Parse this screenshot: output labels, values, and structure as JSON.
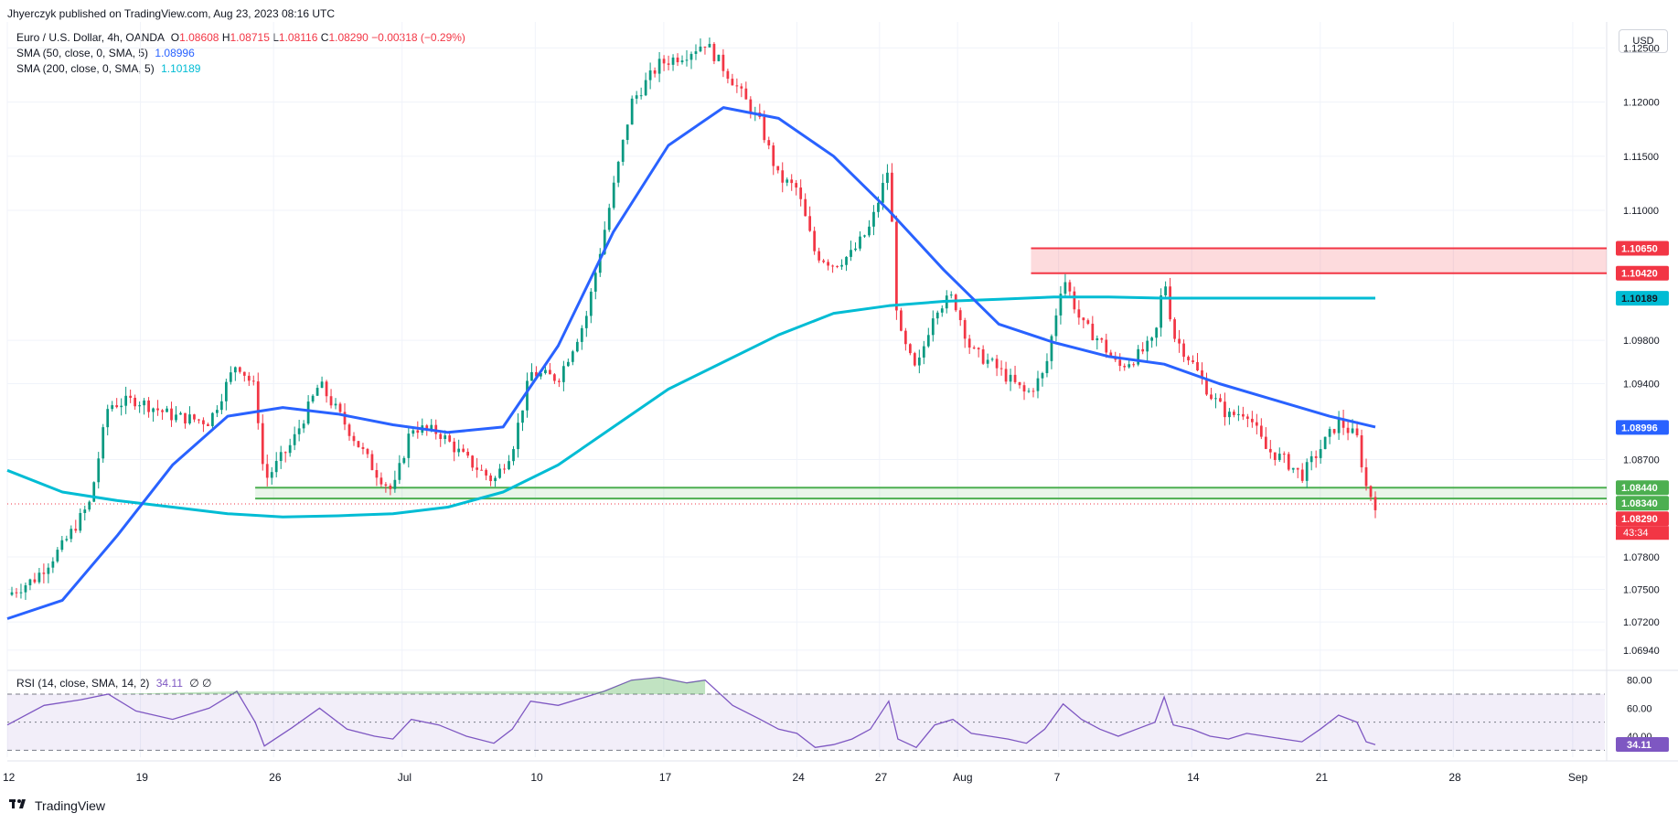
{
  "header": {
    "published_by": "Jhyerczyk published on TradingView.com, Aug 23, 2023 08:16 UTC"
  },
  "legend": {
    "symbol": "Euro / U.S. Dollar, 4h, OANDA",
    "ohlc": {
      "o_label": "O",
      "o": "1.08608",
      "h_label": "H",
      "h": "1.08715",
      "l_label": "L",
      "l": "1.08116",
      "c_label": "C",
      "c": "1.08290",
      "change": "−0.00318 (−0.29%)"
    },
    "sma50": {
      "label": "SMA (50, close, 0, SMA, 5)",
      "value": "1.08996"
    },
    "sma200": {
      "label": "SMA (200, close, 0, SMA, 5)",
      "value": "1.10189"
    },
    "rsi": {
      "label": "RSI (14, close, SMA, 14, 2)",
      "value": "34.11",
      "extra": "∅ ∅"
    }
  },
  "currency_button": "USD",
  "footer": {
    "brand": "TradingView",
    "logo": "tradingview-logo-icon"
  },
  "colors": {
    "up": "#089981",
    "down": "#f23645",
    "sma50": "#2962ff",
    "sma200": "#00bcd4",
    "support": "#4caf50",
    "resistance": "#f23645",
    "rsi": "#7e57c2",
    "grid": "#f0f3fa"
  },
  "chart_data": {
    "type": "candlestick",
    "timeframe": "4h",
    "ylim": [
      1.0677,
      1.1274
    ],
    "y_ticks": [
      "1.12500",
      "1.12000",
      "1.11500",
      "1.11000",
      "1.09800",
      "1.09400",
      "1.08700",
      "1.07800",
      "1.07500",
      "1.07200",
      "1.06940"
    ],
    "x_ticks": [
      "12",
      "19",
      "26",
      "Jul",
      "10",
      "17",
      "24",
      "27",
      "Aug",
      "7",
      "14",
      "21",
      "28",
      "Sep"
    ],
    "price_labels": [
      {
        "value": "1.10650",
        "bg": "#f23645",
        "fg": "#ffffff"
      },
      {
        "value": "1.10420",
        "bg": "#f23645",
        "fg": "#ffffff"
      },
      {
        "value": "1.10189",
        "bg": "#00bcd4",
        "fg": "#131722"
      },
      {
        "value": "1.08996",
        "bg": "#2962ff",
        "fg": "#ffffff"
      },
      {
        "value": "1.08440",
        "bg": "#4caf50",
        "fg": "#ffffff"
      },
      {
        "value": "1.08340",
        "bg": "#4caf50",
        "fg": "#ffffff"
      },
      {
        "value": "1.08290",
        "bg": "#f23645",
        "fg": "#ffffff"
      }
    ],
    "countdown": "43:34",
    "resistance_zone": [
      1.1042,
      1.1065
    ],
    "support_zone": [
      1.0834,
      1.0844
    ],
    "last_close": 1.0829,
    "sma50": [
      [
        0,
        1.0723
      ],
      [
        0.06,
        1.074
      ],
      [
        0.12,
        1.08
      ],
      [
        0.18,
        1.0865
      ],
      [
        0.24,
        1.091
      ],
      [
        0.3,
        1.0918
      ],
      [
        0.36,
        1.0912
      ],
      [
        0.42,
        1.0902
      ],
      [
        0.48,
        1.0895
      ],
      [
        0.54,
        1.09
      ],
      [
        0.6,
        1.0975
      ],
      [
        0.66,
        1.108
      ],
      [
        0.72,
        1.116
      ],
      [
        0.78,
        1.1195
      ],
      [
        0.84,
        1.1185
      ],
      [
        0.9,
        1.115
      ],
      [
        0.96,
        1.11
      ],
      [
        1.02,
        1.1045
      ],
      [
        1.08,
        1.0995
      ],
      [
        1.14,
        1.0978
      ],
      [
        1.2,
        1.0965
      ],
      [
        1.26,
        1.0958
      ],
      [
        1.32,
        1.094
      ],
      [
        1.38,
        1.0925
      ],
      [
        1.44,
        1.091
      ],
      [
        1.49,
        1.09
      ]
    ],
    "sma200": [
      [
        0,
        1.086
      ],
      [
        0.06,
        1.084
      ],
      [
        0.12,
        1.0832
      ],
      [
        0.18,
        1.0826
      ],
      [
        0.24,
        1.082
      ],
      [
        0.3,
        1.0817
      ],
      [
        0.36,
        1.0818
      ],
      [
        0.42,
        1.082
      ],
      [
        0.48,
        1.0826
      ],
      [
        0.54,
        1.084
      ],
      [
        0.6,
        1.0865
      ],
      [
        0.66,
        1.09
      ],
      [
        0.72,
        1.0935
      ],
      [
        0.78,
        1.096
      ],
      [
        0.84,
        1.0985
      ],
      [
        0.9,
        1.1005
      ],
      [
        0.96,
        1.1012
      ],
      [
        1.02,
        1.1016
      ],
      [
        1.08,
        1.1018
      ],
      [
        1.14,
        1.102
      ],
      [
        1.2,
        1.102
      ],
      [
        1.26,
        1.1019
      ],
      [
        1.32,
        1.1019
      ],
      [
        1.38,
        1.1019
      ],
      [
        1.44,
        1.1019
      ],
      [
        1.49,
        1.1019
      ]
    ],
    "close_path": [
      [
        0,
        1.0745
      ],
      [
        0.03,
        1.076
      ],
      [
        0.06,
        1.079
      ],
      [
        0.09,
        1.083
      ],
      [
        0.11,
        1.092
      ],
      [
        0.14,
        1.0925
      ],
      [
        0.18,
        1.091
      ],
      [
        0.22,
        1.0905
      ],
      [
        0.25,
        1.096
      ],
      [
        0.27,
        1.0935
      ],
      [
        0.28,
        1.085
      ],
      [
        0.31,
        1.0885
      ],
      [
        0.34,
        1.094
      ],
      [
        0.37,
        1.09
      ],
      [
        0.4,
        1.086
      ],
      [
        0.42,
        1.084
      ],
      [
        0.44,
        1.09
      ],
      [
        0.47,
        1.0895
      ],
      [
        0.5,
        1.087
      ],
      [
        0.53,
        1.085
      ],
      [
        0.55,
        1.088
      ],
      [
        0.57,
        1.095
      ],
      [
        0.6,
        1.0945
      ],
      [
        0.63,
        1.1
      ],
      [
        0.65,
        1.108
      ],
      [
        0.68,
        1.12
      ],
      [
        0.71,
        1.1235
      ],
      [
        0.74,
        1.1245
      ],
      [
        0.76,
        1.1255
      ],
      [
        0.79,
        1.122
      ],
      [
        0.82,
        1.118
      ],
      [
        0.84,
        1.113
      ],
      [
        0.86,
        1.112
      ],
      [
        0.88,
        1.106
      ],
      [
        0.9,
        1.105
      ],
      [
        0.92,
        1.106
      ],
      [
        0.94,
        1.1085
      ],
      [
        0.96,
        1.114
      ],
      [
        0.97,
        1.099
      ],
      [
        0.99,
        1.095
      ],
      [
        1.01,
        1.101
      ],
      [
        1.03,
        1.102
      ],
      [
        1.05,
        1.097
      ],
      [
        1.07,
        1.096
      ],
      [
        1.09,
        1.0945
      ],
      [
        1.11,
        1.093
      ],
      [
        1.13,
        1.095
      ],
      [
        1.15,
        1.104
      ],
      [
        1.17,
        1.0995
      ],
      [
        1.19,
        1.098
      ],
      [
        1.21,
        1.0955
      ],
      [
        1.23,
        1.0965
      ],
      [
        1.25,
        1.098
      ],
      [
        1.26,
        1.104
      ],
      [
        1.27,
        1.0985
      ],
      [
        1.29,
        1.096
      ],
      [
        1.31,
        1.093
      ],
      [
        1.33,
        1.091
      ],
      [
        1.35,
        1.0915
      ],
      [
        1.37,
        1.088
      ],
      [
        1.39,
        1.087
      ],
      [
        1.41,
        1.0855
      ],
      [
        1.43,
        1.088
      ],
      [
        1.45,
        1.0905
      ],
      [
        1.47,
        1.089
      ],
      [
        1.48,
        1.0845
      ],
      [
        1.49,
        1.0829
      ]
    ],
    "rsi": {
      "ylim": [
        25,
        85
      ],
      "levels": [
        "80.00",
        "60.00",
        "40.00"
      ],
      "bands": [
        70,
        50,
        30
      ],
      "last": "34.11",
      "path": [
        [
          0,
          48
        ],
        [
          0.04,
          62
        ],
        [
          0.08,
          66
        ],
        [
          0.11,
          70
        ],
        [
          0.14,
          58
        ],
        [
          0.18,
          52
        ],
        [
          0.22,
          60
        ],
        [
          0.25,
          72
        ],
        [
          0.27,
          50
        ],
        [
          0.28,
          33
        ],
        [
          0.31,
          46
        ],
        [
          0.34,
          60
        ],
        [
          0.37,
          45
        ],
        [
          0.4,
          40
        ],
        [
          0.42,
          38
        ],
        [
          0.44,
          52
        ],
        [
          0.47,
          48
        ],
        [
          0.5,
          40
        ],
        [
          0.53,
          35
        ],
        [
          0.55,
          45
        ],
        [
          0.57,
          65
        ],
        [
          0.6,
          62
        ],
        [
          0.63,
          68
        ],
        [
          0.65,
          72
        ],
        [
          0.68,
          80
        ],
        [
          0.71,
          82
        ],
        [
          0.74,
          78
        ],
        [
          0.76,
          80
        ],
        [
          0.79,
          62
        ],
        [
          0.82,
          52
        ],
        [
          0.84,
          45
        ],
        [
          0.86,
          42
        ],
        [
          0.88,
          32
        ],
        [
          0.9,
          34
        ],
        [
          0.92,
          38
        ],
        [
          0.94,
          45
        ],
        [
          0.96,
          65
        ],
        [
          0.97,
          38
        ],
        [
          0.99,
          32
        ],
        [
          1.01,
          48
        ],
        [
          1.03,
          52
        ],
        [
          1.05,
          42
        ],
        [
          1.07,
          40
        ],
        [
          1.09,
          38
        ],
        [
          1.11,
          35
        ],
        [
          1.13,
          45
        ],
        [
          1.15,
          63
        ],
        [
          1.17,
          52
        ],
        [
          1.19,
          45
        ],
        [
          1.21,
          40
        ],
        [
          1.23,
          45
        ],
        [
          1.25,
          50
        ],
        [
          1.26,
          68
        ],
        [
          1.27,
          48
        ],
        [
          1.29,
          45
        ],
        [
          1.31,
          40
        ],
        [
          1.33,
          38
        ],
        [
          1.35,
          42
        ],
        [
          1.37,
          40
        ],
        [
          1.39,
          38
        ],
        [
          1.41,
          36
        ],
        [
          1.43,
          45
        ],
        [
          1.45,
          55
        ],
        [
          1.47,
          50
        ],
        [
          1.48,
          36
        ],
        [
          1.49,
          34
        ]
      ]
    }
  }
}
